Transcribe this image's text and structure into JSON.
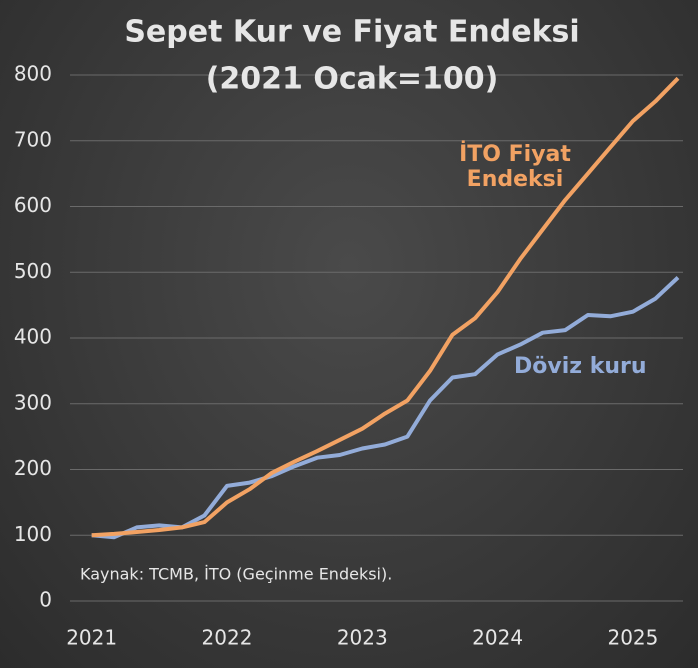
{
  "chart_data": {
    "type": "line",
    "title": "Sepet Kur ve Fiyat Endeksi",
    "subtitle": "(2021 Ocak=100)",
    "source": "Kaynak: TCMB, İTO (Geçinme Endeksi).",
    "x": [
      2021,
      2021.167,
      2021.333,
      2021.5,
      2021.667,
      2021.833,
      2022,
      2022.167,
      2022.333,
      2022.5,
      2022.667,
      2022.833,
      2023,
      2023.167,
      2023.333,
      2023.5,
      2023.667,
      2023.833,
      2024,
      2024.167,
      2024.333,
      2024.5,
      2024.667,
      2024.833,
      2025,
      2025.167,
      2025.333
    ],
    "series": [
      {
        "name": "İTO Fiyat Endeksi",
        "color": "#f2a263",
        "values": [
          100,
          102,
          105,
          108,
          112,
          120,
          150,
          170,
          195,
          212,
          228,
          245,
          262,
          285,
          305,
          350,
          405,
          430,
          470,
          520,
          565,
          610,
          650,
          690,
          730,
          760,
          795
        ]
      },
      {
        "name": "Döviz kuru",
        "color": "#93acd9",
        "values": [
          100,
          97,
          112,
          115,
          112,
          130,
          175,
          180,
          190,
          205,
          218,
          222,
          232,
          238,
          250,
          305,
          340,
          345,
          375,
          390,
          408,
          412,
          435,
          433,
          440,
          460,
          492
        ]
      }
    ],
    "xlim": [
      2020.84,
      2025.37
    ],
    "xticks": [
      2021,
      2022,
      2023,
      2024,
      2025
    ],
    "ylim": [
      0,
      800
    ],
    "yticks": [
      0,
      100,
      200,
      300,
      400,
      500,
      600,
      700,
      800
    ],
    "grid": true
  }
}
